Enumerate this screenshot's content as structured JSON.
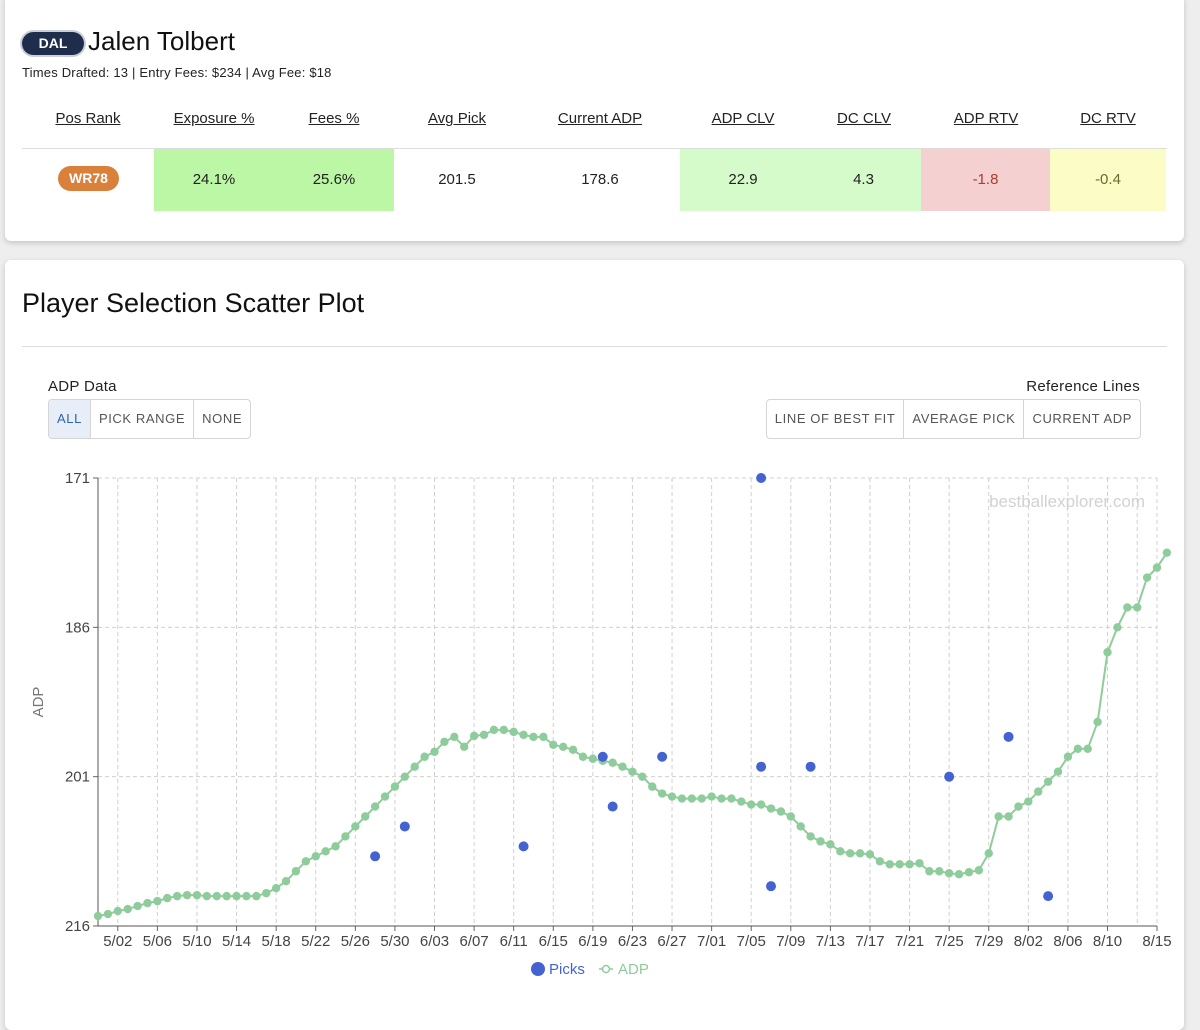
{
  "player": {
    "team": "DAL",
    "name": "Jalen Tolbert",
    "summary": "Times Drafted: 13 |  Entry Fees: $234 |  Avg Fee: $18"
  },
  "stats_table": {
    "headers": [
      "Pos Rank",
      "Exposure %",
      "Fees %",
      "Avg Pick",
      "Current ADP",
      "ADP CLV",
      "DC CLV",
      "ADP RTV",
      "DC RTV"
    ],
    "pos_rank": "WR78",
    "exposure": "24.1%",
    "fees": "25.6%",
    "avg_pick": "201.5",
    "current_adp": "178.6",
    "adp_clv": "22.9",
    "dc_clv": "4.3",
    "adp_rtv": "-1.8",
    "dc_rtv": "-0.4"
  },
  "colors": {
    "positive_strong": "#bbf7a4",
    "positive_light": "#d6fbcb",
    "negative": "#f5d0d0",
    "negative_text": "#b03a2e",
    "neutral_yellow": "#fcfcc6",
    "neutral_text": "#6b6b2e",
    "rank_badge": "#d9813b",
    "team_badge": "#1f2d4d",
    "adp_line": "#8fcc9b",
    "picks": "#4563d0"
  },
  "chart_section": {
    "title": "Player Selection Scatter Plot",
    "adp_data_label": "ADP Data",
    "adp_buttons": [
      "ALL",
      "PICK RANGE",
      "NONE"
    ],
    "adp_active": "ALL",
    "reference_label": "Reference Lines",
    "reference_buttons": [
      "LINE OF BEST FIT",
      "AVERAGE PICK",
      "CURRENT ADP"
    ],
    "watermark": "bestballexplorer.com"
  },
  "chart_data": {
    "type": "scatter",
    "ylabel": "ADP",
    "ylim": [
      216,
      171
    ],
    "y_reversed": true,
    "yticks": [
      171,
      186,
      201,
      216
    ],
    "x_range": [
      "4/30",
      "8/15"
    ],
    "xticks": [
      "5/02",
      "5/06",
      "5/10",
      "5/14",
      "5/18",
      "5/22",
      "5/26",
      "5/30",
      "6/03",
      "6/07",
      "6/11",
      "6/15",
      "6/19",
      "6/23",
      "6/27",
      "7/01",
      "7/05",
      "7/09",
      "7/13",
      "7/17",
      "7/21",
      "7/25",
      "7/29",
      "8/02",
      "8/06",
      "8/10",
      "8/15"
    ],
    "grid": true,
    "legend_position": "bottom",
    "series": [
      {
        "name": "Picks",
        "style": "scatter",
        "points": [
          {
            "x": "5/28",
            "y": 209
          },
          {
            "x": "5/31",
            "y": 206
          },
          {
            "x": "6/12",
            "y": 208
          },
          {
            "x": "6/20",
            "y": 199
          },
          {
            "x": "6/21",
            "y": 204
          },
          {
            "x": "6/26",
            "y": 199
          },
          {
            "x": "7/06",
            "y": 171
          },
          {
            "x": "7/06",
            "y": 200
          },
          {
            "x": "7/07",
            "y": 212
          },
          {
            "x": "7/11",
            "y": 200
          },
          {
            "x": "7/25",
            "y": 201
          },
          {
            "x": "7/31",
            "y": 197
          },
          {
            "x": "8/04",
            "y": 213
          }
        ]
      },
      {
        "name": "ADP",
        "style": "line",
        "points": [
          {
            "x": "4/30",
            "y": 215.0
          },
          {
            "x": "5/01",
            "y": 214.8
          },
          {
            "x": "5/02",
            "y": 214.5
          },
          {
            "x": "5/03",
            "y": 214.3
          },
          {
            "x": "5/04",
            "y": 214.0
          },
          {
            "x": "5/05",
            "y": 213.7
          },
          {
            "x": "5/06",
            "y": 213.5
          },
          {
            "x": "5/07",
            "y": 213.2
          },
          {
            "x": "5/08",
            "y": 213.0
          },
          {
            "x": "5/09",
            "y": 212.9
          },
          {
            "x": "5/10",
            "y": 212.9
          },
          {
            "x": "5/11",
            "y": 213.0
          },
          {
            "x": "5/12",
            "y": 213.0
          },
          {
            "x": "5/13",
            "y": 213.0
          },
          {
            "x": "5/14",
            "y": 213.0
          },
          {
            "x": "5/15",
            "y": 213.0
          },
          {
            "x": "5/16",
            "y": 213.0
          },
          {
            "x": "5/17",
            "y": 212.7
          },
          {
            "x": "5/18",
            "y": 212.2
          },
          {
            "x": "5/19",
            "y": 211.5
          },
          {
            "x": "5/20",
            "y": 210.5
          },
          {
            "x": "5/21",
            "y": 209.5
          },
          {
            "x": "5/22",
            "y": 209.0
          },
          {
            "x": "5/23",
            "y": 208.5
          },
          {
            "x": "5/24",
            "y": 208.0
          },
          {
            "x": "5/25",
            "y": 207.0
          },
          {
            "x": "5/26",
            "y": 206.0
          },
          {
            "x": "5/27",
            "y": 205.0
          },
          {
            "x": "5/28",
            "y": 204.0
          },
          {
            "x": "5/29",
            "y": 203.0
          },
          {
            "x": "5/30",
            "y": 202.0
          },
          {
            "x": "5/31",
            "y": 201.0
          },
          {
            "x": "6/01",
            "y": 200.0
          },
          {
            "x": "6/02",
            "y": 199.0
          },
          {
            "x": "6/03",
            "y": 198.5
          },
          {
            "x": "6/04",
            "y": 197.5
          },
          {
            "x": "6/05",
            "y": 197.0
          },
          {
            "x": "6/06",
            "y": 198.0
          },
          {
            "x": "6/07",
            "y": 196.9
          },
          {
            "x": "6/08",
            "y": 196.8
          },
          {
            "x": "6/09",
            "y": 196.3
          },
          {
            "x": "6/10",
            "y": 196.3
          },
          {
            "x": "6/11",
            "y": 196.5
          },
          {
            "x": "6/12",
            "y": 196.8
          },
          {
            "x": "6/13",
            "y": 197.0
          },
          {
            "x": "6/14",
            "y": 197.0
          },
          {
            "x": "6/15",
            "y": 197.8
          },
          {
            "x": "6/16",
            "y": 198.0
          },
          {
            "x": "6/17",
            "y": 198.3
          },
          {
            "x": "6/18",
            "y": 199.0
          },
          {
            "x": "6/19",
            "y": 199.2
          },
          {
            "x": "6/20",
            "y": 199.4
          },
          {
            "x": "6/21",
            "y": 199.6
          },
          {
            "x": "6/22",
            "y": 200.0
          },
          {
            "x": "6/23",
            "y": 200.5
          },
          {
            "x": "6/24",
            "y": 201.0
          },
          {
            "x": "6/25",
            "y": 202.0
          },
          {
            "x": "6/26",
            "y": 202.7
          },
          {
            "x": "6/27",
            "y": 203.0
          },
          {
            "x": "6/28",
            "y": 203.2
          },
          {
            "x": "6/29",
            "y": 203.2
          },
          {
            "x": "6/30",
            "y": 203.2
          },
          {
            "x": "7/01",
            "y": 203.0
          },
          {
            "x": "7/02",
            "y": 203.2
          },
          {
            "x": "7/03",
            "y": 203.2
          },
          {
            "x": "7/04",
            "y": 203.5
          },
          {
            "x": "7/05",
            "y": 203.8
          },
          {
            "x": "7/06",
            "y": 203.8
          },
          {
            "x": "7/07",
            "y": 204.2
          },
          {
            "x": "7/08",
            "y": 204.5
          },
          {
            "x": "7/09",
            "y": 205.0
          },
          {
            "x": "7/10",
            "y": 206.0
          },
          {
            "x": "7/11",
            "y": 207.0
          },
          {
            "x": "7/12",
            "y": 207.5
          },
          {
            "x": "7/13",
            "y": 207.8
          },
          {
            "x": "7/14",
            "y": 208.5
          },
          {
            "x": "7/15",
            "y": 208.7
          },
          {
            "x": "7/16",
            "y": 208.7
          },
          {
            "x": "7/17",
            "y": 208.8
          },
          {
            "x": "7/18",
            "y": 209.5
          },
          {
            "x": "7/19",
            "y": 209.8
          },
          {
            "x": "7/20",
            "y": 209.8
          },
          {
            "x": "7/21",
            "y": 209.8
          },
          {
            "x": "7/22",
            "y": 209.7
          },
          {
            "x": "7/23",
            "y": 210.5
          },
          {
            "x": "7/24",
            "y": 210.5
          },
          {
            "x": "7/25",
            "y": 210.7
          },
          {
            "x": "7/26",
            "y": 210.8
          },
          {
            "x": "7/27",
            "y": 210.6
          },
          {
            "x": "7/28",
            "y": 210.4
          },
          {
            "x": "7/29",
            "y": 208.7
          },
          {
            "x": "7/30",
            "y": 205.0
          },
          {
            "x": "7/31",
            "y": 205.0
          },
          {
            "x": "8/01",
            "y": 204.0
          },
          {
            "x": "8/02",
            "y": 203.5
          },
          {
            "x": "8/03",
            "y": 202.5
          },
          {
            "x": "8/04",
            "y": 201.5
          },
          {
            "x": "8/05",
            "y": 200.5
          },
          {
            "x": "8/06",
            "y": 199.0
          },
          {
            "x": "8/07",
            "y": 198.2
          },
          {
            "x": "8/08",
            "y": 198.2
          },
          {
            "x": "8/09",
            "y": 195.5
          },
          {
            "x": "8/10",
            "y": 188.5
          },
          {
            "x": "8/11",
            "y": 186.0
          },
          {
            "x": "8/12",
            "y": 184.0
          },
          {
            "x": "8/13",
            "y": 184.0
          },
          {
            "x": "8/14",
            "y": 181.0
          },
          {
            "x": "8/15",
            "y": 180.0
          },
          {
            "x": "8/16",
            "y": 178.5
          }
        ]
      }
    ],
    "legend": [
      "Picks",
      "ADP"
    ]
  }
}
